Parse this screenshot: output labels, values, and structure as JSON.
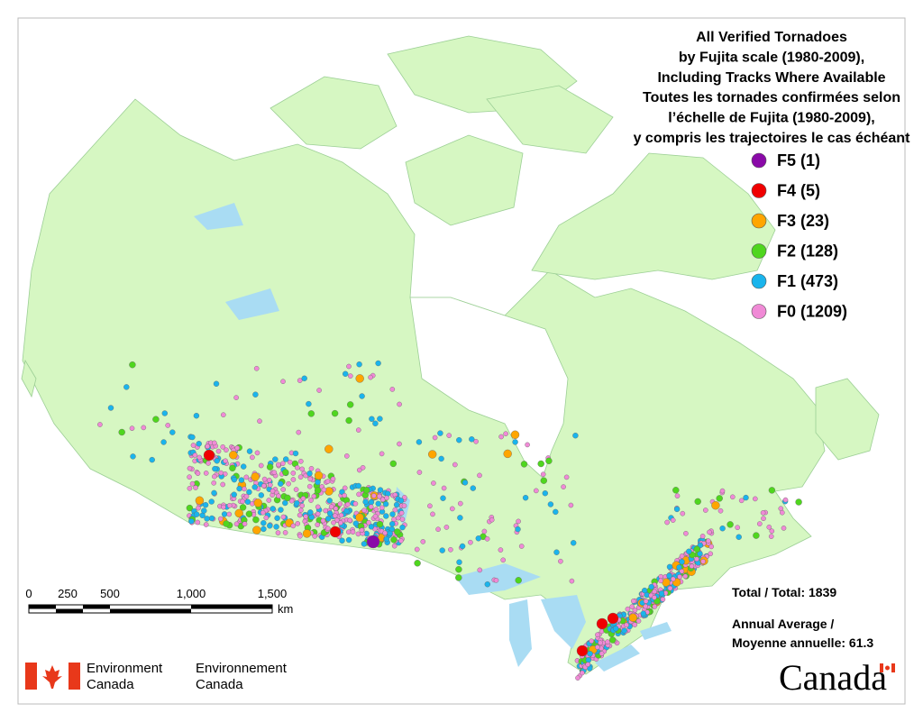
{
  "title": [
    "All Verified Tornadoes",
    "by Fujita scale (1980-2009),",
    "Including Tracks Where Available",
    "Toutes les tornades confirmées selon",
    "l’échelle de Fujita (1980-2009),",
    "y compris les trajectoires le cas échéant"
  ],
  "legend": [
    {
      "label": "F5 (1)",
      "color": "#8a0aa8"
    },
    {
      "label": "F4 (5)",
      "color": "#f00000"
    },
    {
      "label": "F3 (23)",
      "color": "#ffa500"
    },
    {
      "label": "F2 (128)",
      "color": "#4fd61e"
    },
    {
      "label": "F1 (473)",
      "color": "#1ab4ec"
    },
    {
      "label": "F0 (1209)",
      "color": "#f08ad6"
    }
  ],
  "scale_bar": {
    "ticks": [
      "0",
      "250",
      "500",
      "1,000",
      "1,500"
    ],
    "unit": "km"
  },
  "total": "Total / Total: 1839",
  "average": [
    "Annual Average /",
    "Moyenne annuelle: 61.3"
  ],
  "footer": {
    "department_en": [
      "Environment",
      "Canada"
    ],
    "department_fr": [
      "Environnement",
      "Canada"
    ],
    "wordmark": "Canada"
  }
}
